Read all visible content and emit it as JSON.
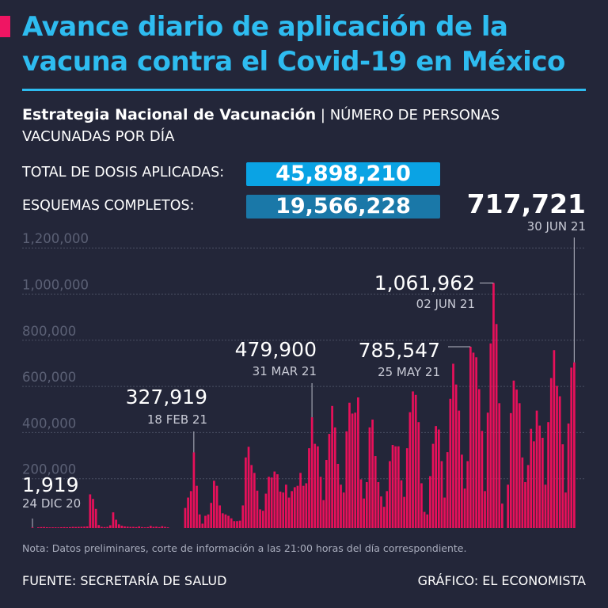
{
  "header": {
    "title": "Avance diario de aplicación de la vacuna contra el Covid-19 en México",
    "subtitle_bold": "Estrategia Nacional de Vacunación",
    "subtitle_rest": " | NÚMERO DE PERSONAS VACUNADAS POR DÍA"
  },
  "stats": [
    {
      "label": "TOTAL DE DOSIS APLICADAS:",
      "value": "45,898,210",
      "color": "#0aa3e4"
    },
    {
      "label": "ESQUEMAS COMPLETOS:",
      "value": "19,566,228",
      "color": "#1a78a8"
    }
  ],
  "colors": {
    "background": "#232639",
    "title": "#2ebcf0",
    "bars": "#e8105a",
    "accent": "#ef1563"
  },
  "chart_data": {
    "type": "bar",
    "x_range": [
      "2020-12-24",
      "2021-06-30"
    ],
    "ylim": [
      0,
      1200000
    ],
    "y_ticks": [
      "200,000",
      "400,000",
      "600,000",
      "800,000",
      "1,000,000",
      "1,200,000"
    ],
    "y_tick_values": [
      200000,
      400000,
      600000,
      800000,
      1000000,
      1200000
    ],
    "grid": true,
    "values": [
      1919,
      0,
      3000,
      4000,
      4500,
      3500,
      2000,
      3000,
      3000,
      2500,
      3500,
      4000,
      3500,
      4000,
      5000,
      4500,
      5000,
      5500,
      6000,
      7000,
      146000,
      126000,
      83000,
      13000,
      5000,
      4000,
      5000,
      12000,
      68000,
      36000,
      16000,
      10000,
      7000,
      6000,
      5000,
      5000,
      4000,
      7000,
      4000,
      3000,
      4000,
      9000,
      5000,
      6000,
      4000,
      8000,
      5000,
      3000,
      0,
      0,
      0,
      0,
      0,
      87000,
      132000,
      160000,
      327919,
      183000,
      59000,
      19000,
      53000,
      59000,
      109000,
      205000,
      183000,
      98000,
      64000,
      59000,
      53000,
      42000,
      30000,
      30000,
      32000,
      98000,
      306000,
      352000,
      273000,
      239000,
      162000,
      81000,
      75000,
      149000,
      222000,
      219000,
      245000,
      233000,
      158000,
      154000,
      188000,
      132000,
      160000,
      177000,
      183000,
      239000,
      183000,
      194000,
      346000,
      479900,
      365000,
      354000,
      222000,
      121000,
      295000,
      408000,
      529000,
      436000,
      278000,
      188000,
      154000,
      419000,
      543000,
      496000,
      500000,
      566000,
      211000,
      128000,
      199000,
      436000,
      470000,
      312000,
      199000,
      137000,
      92000,
      160000,
      290000,
      360000,
      354000,
      354000,
      207000,
      135000,
      346000,
      502000,
      592000,
      577000,
      459000,
      194000,
      70000,
      59000,
      225000,
      365000,
      442000,
      427000,
      290000,
      132000,
      329000,
      560000,
      712000,
      622000,
      509000,
      318000,
      171000,
      290000,
      785547,
      760000,
      740000,
      602000,
      421000,
      160000,
      500000,
      800000,
      1061962,
      884000,
      541000,
      106000,
      0,
      188000,
      498000,
      639000,
      600000,
      541000,
      306000,
      199000,
      273000,
      430000,
      376000,
      509000,
      444000,
      391000,
      188000,
      459000,
      650000,
      771000,
      616000,
      571000,
      363000,
      154000,
      453000,
      695000,
      717721
    ],
    "annotations": [
      {
        "value": "1,919",
        "date": "24 DIC 20"
      },
      {
        "value": "327,919",
        "date": "18 FEB 21"
      },
      {
        "value": "479,900",
        "date": "31 MAR 21"
      },
      {
        "value": "785,547",
        "date": "25 MAY 21"
      },
      {
        "value": "1,061,962",
        "date": "02 JUN 21"
      },
      {
        "value": "717,721",
        "date": "30 JUN 21"
      }
    ]
  },
  "footer": {
    "note": "Nota: Datos preliminares, corte de información a las 21:00 horas del día correspondiente.",
    "source": "FUENTE: SECRETARÍA DE SALUD",
    "credit": "GRÁFICO: EL ECONOMISTA"
  }
}
